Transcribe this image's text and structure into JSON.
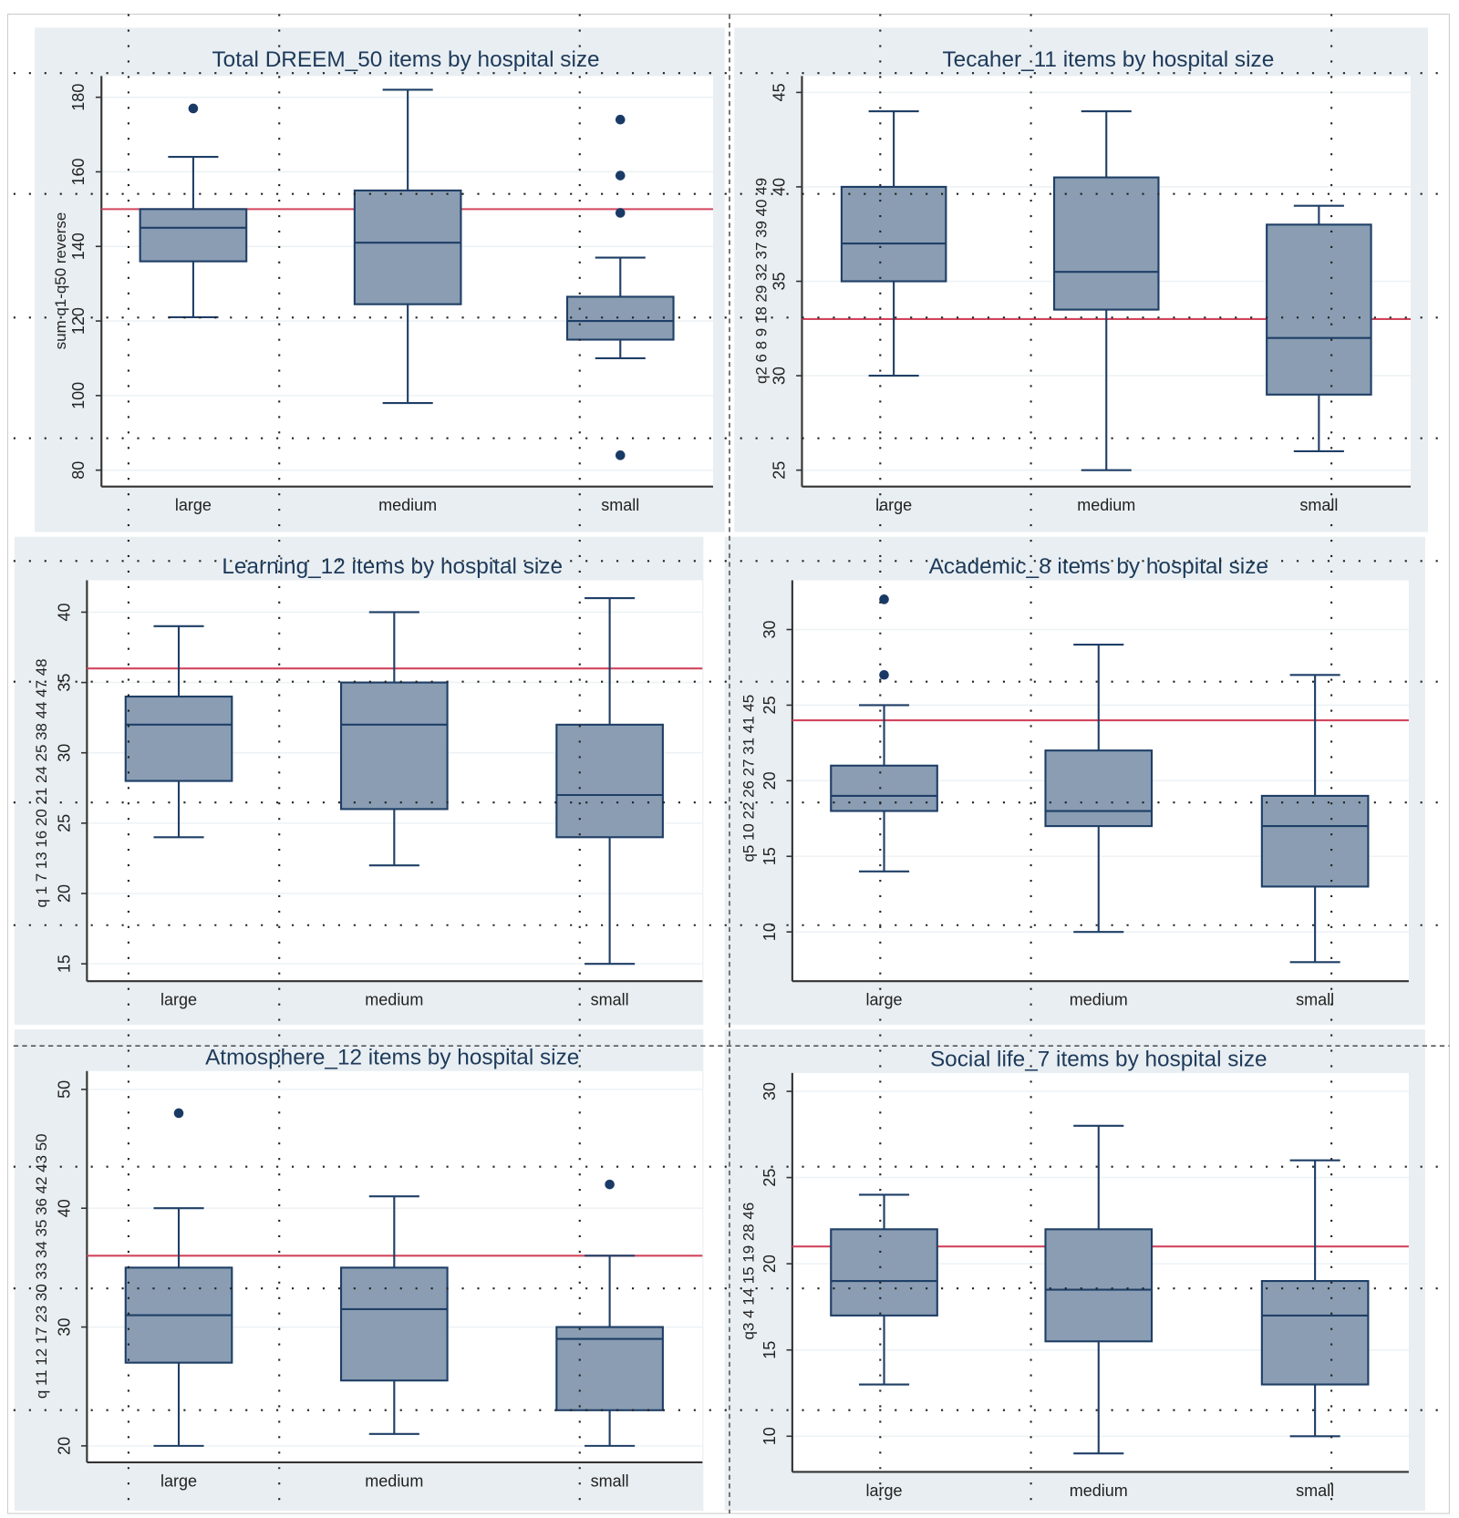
{
  "chart_data": [
    {
      "type": "box",
      "title": "Total DREEM_50 items by hospital size",
      "ylabel": "sum q1-q50 reverse",
      "categories": [
        "large",
        "medium",
        "small"
      ],
      "yticks": [
        80,
        100,
        120,
        140,
        160,
        180
      ],
      "reference_line": 150,
      "boxes": [
        {
          "min": 121,
          "q1": 136,
          "median": 145,
          "q3": 150,
          "max": 164,
          "outliers": [
            177
          ]
        },
        {
          "min": 98,
          "q1": 124.5,
          "median": 141,
          "q3": 155,
          "max": 182,
          "outliers": []
        },
        {
          "min": 110,
          "q1": 115,
          "median": 120,
          "q3": 126.5,
          "max": 137,
          "outliers": [
            174,
            159,
            149,
            84
          ]
        }
      ]
    },
    {
      "type": "box",
      "title": "Tecaher_11 items by hospital size",
      "ylabel": "q2 6 8 9 18 29 32 37 39 40 49",
      "categories": [
        "large",
        "medium",
        "small"
      ],
      "yticks": [
        25,
        30,
        35,
        40,
        45
      ],
      "reference_line": 33,
      "boxes": [
        {
          "min": 30,
          "q1": 35,
          "median": 37,
          "q3": 40,
          "max": 44,
          "outliers": []
        },
        {
          "min": 25,
          "q1": 33.5,
          "median": 35.5,
          "q3": 40.5,
          "max": 44,
          "outliers": []
        },
        {
          "min": 26,
          "q1": 29,
          "median": 32,
          "q3": 38,
          "max": 39,
          "outliers": []
        }
      ]
    },
    {
      "type": "box",
      "title": "Learning_12 items by hospital size",
      "ylabel": "q 1 7 13 16 20 21 24 25 38 44 47 48",
      "categories": [
        "large",
        "medium",
        "small"
      ],
      "yticks": [
        15,
        20,
        25,
        30,
        35,
        40
      ],
      "reference_line": 36,
      "boxes": [
        {
          "min": 24,
          "q1": 28,
          "median": 32,
          "q3": 34,
          "max": 39,
          "outliers": []
        },
        {
          "min": 22,
          "q1": 26,
          "median": 32,
          "q3": 35,
          "max": 40,
          "outliers": []
        },
        {
          "min": 15,
          "q1": 24,
          "median": 27,
          "q3": 32,
          "max": 41,
          "outliers": []
        }
      ]
    },
    {
      "type": "box",
      "title": "Academic_8 items by hospital size",
      "ylabel": "q5 10 22 26 27 31 41 45",
      "categories": [
        "large",
        "medium",
        "small"
      ],
      "yticks": [
        10,
        15,
        20,
        25,
        30
      ],
      "reference_line": 24,
      "boxes": [
        {
          "min": 14,
          "q1": 18,
          "median": 19,
          "q3": 21,
          "max": 25,
          "outliers": [
            32,
            27
          ]
        },
        {
          "min": 10,
          "q1": 17,
          "median": 18,
          "q3": 22,
          "max": 29,
          "outliers": []
        },
        {
          "min": 8,
          "q1": 13,
          "median": 17,
          "q3": 19,
          "max": 27,
          "outliers": []
        }
      ]
    },
    {
      "type": "box",
      "title": "Atmosphere_12 items by hospital size",
      "ylabel": "q 11 12 17 23 30 33 34 35 36 42 43 50",
      "categories": [
        "large",
        "medium",
        "small"
      ],
      "yticks": [
        20,
        30,
        40,
        50
      ],
      "reference_line": 36,
      "boxes": [
        {
          "min": 20,
          "q1": 27,
          "median": 31,
          "q3": 35,
          "max": 40,
          "outliers": [
            48
          ]
        },
        {
          "min": 21,
          "q1": 25.5,
          "median": 31.5,
          "q3": 35,
          "max": 41,
          "outliers": []
        },
        {
          "min": 20,
          "q1": 23,
          "median": 29,
          "q3": 30,
          "max": 36,
          "outliers": [
            42
          ]
        }
      ]
    },
    {
      "type": "box",
      "title": "Social life_7 items by hospital size",
      "ylabel": "q3 4 14 15 19 28 46",
      "categories": [
        "large",
        "medium",
        "small"
      ],
      "yticks": [
        10,
        15,
        20,
        25,
        30
      ],
      "reference_line": 21,
      "boxes": [
        {
          "min": 13,
          "q1": 17,
          "median": 19,
          "q3": 22,
          "max": 24,
          "outliers": []
        },
        {
          "min": 9,
          "q1": 15.5,
          "median": 18.5,
          "q3": 22,
          "max": 28,
          "outliers": []
        },
        {
          "min": 10,
          "q1": 13,
          "median": 17,
          "q3": 19,
          "max": 26,
          "outliers": []
        }
      ]
    }
  ],
  "colors": {
    "box_fill": "#8a9db3",
    "box_stroke": "#1f3f66",
    "reference_line": "#d2455e",
    "outlier": "#1a3a66",
    "panel_bg": "#e8eef2",
    "plot_bg": "#ffffff"
  }
}
